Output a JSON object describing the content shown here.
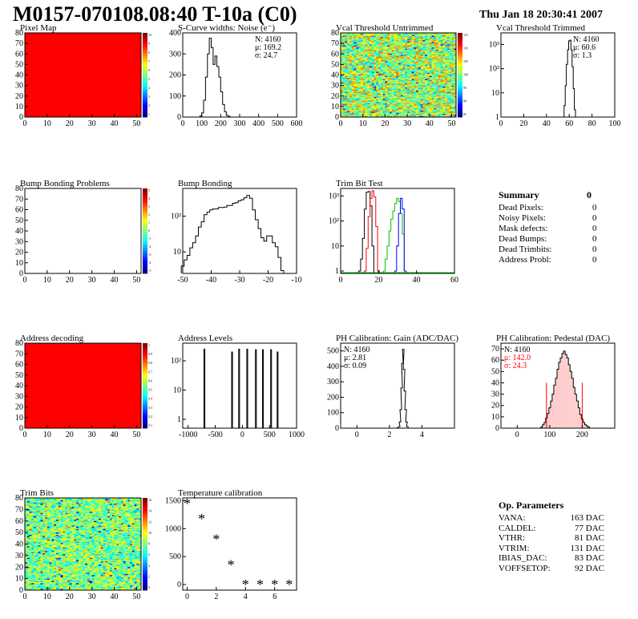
{
  "header": {
    "title": "M0157-070108.08:40 T-10a (C0)",
    "date": "Thu Jan 18 20:30:41 2007"
  },
  "colors": {
    "hist_line": "#000000",
    "red": "#ff0000",
    "green": "#00c000",
    "blue": "#0000ff",
    "frame": "#000000"
  },
  "summary": {
    "title": "Summary",
    "total": "0",
    "rows": [
      {
        "label": "Dead Pixels:",
        "value": "0"
      },
      {
        "label": "Noisy Pixels:",
        "value": "0"
      },
      {
        "label": "Mask defects:",
        "value": "0"
      },
      {
        "label": "Dead Bumps:",
        "value": "0"
      },
      {
        "label": "Dead Trimbits:",
        "value": "0"
      },
      {
        "label": "Address Probl:",
        "value": "0"
      }
    ]
  },
  "op_params": {
    "title": "Op. Parameters",
    "rows": [
      {
        "label": "VANA:",
        "value": "163 DAC"
      },
      {
        "label": "CALDEL:",
        "value": "77 DAC"
      },
      {
        "label": "VTHR:",
        "value": "81 DAC"
      },
      {
        "label": "VTRIM:",
        "value": "131 DAC"
      },
      {
        "label": "IBIAS_DAC:",
        "value": "83 DAC"
      },
      {
        "label": "VOFFSETOP:",
        "value": "92 DAC"
      }
    ]
  },
  "chart_data": [
    {
      "id": "pixel_map",
      "type": "heatmap",
      "title": "Pixel Map",
      "xlim": [
        0,
        52
      ],
      "ylim": [
        0,
        80
      ],
      "xticks": [
        "0",
        "10",
        "20",
        "30",
        "40",
        "50"
      ],
      "yticks": [
        "0",
        "10",
        "20",
        "30",
        "40",
        "50",
        "60",
        "70",
        "80"
      ],
      "fill": "uniform-red",
      "colorbar": [
        "10",
        "9",
        "8",
        "7",
        "6",
        "5",
        "4",
        "3",
        "2",
        "1"
      ]
    },
    {
      "id": "scurve_noise",
      "type": "line",
      "title": "S-Curve widths: Noise (e⁻)",
      "xlim": [
        0,
        600
      ],
      "ylim": [
        0,
        400
      ],
      "xticks": [
        "0",
        "100",
        "200",
        "300",
        "400",
        "500",
        "600"
      ],
      "yticks": [
        "0",
        "100",
        "200",
        "300",
        "400"
      ],
      "stats": [
        "N: 4160",
        "μ: 169.2",
        "σ: 24.7"
      ],
      "x": [
        95,
        105,
        115,
        125,
        135,
        145,
        155,
        165,
        175,
        185,
        195,
        205,
        215,
        225,
        235,
        245,
        255
      ],
      "y": [
        5,
        20,
        80,
        190,
        300,
        375,
        330,
        250,
        290,
        240,
        190,
        120,
        60,
        25,
        8,
        3,
        0
      ]
    },
    {
      "id": "vcal_untrimmed",
      "type": "heatmap",
      "title": "Vcal Threshold Untrimmed",
      "xlim": [
        0,
        52
      ],
      "ylim": [
        0,
        80
      ],
      "xticks": [
        "0",
        "10",
        "20",
        "30",
        "40",
        "50"
      ],
      "yticks": [
        "0",
        "10",
        "20",
        "30",
        "40",
        "50",
        "60",
        "70",
        "80"
      ],
      "fill": "noise-green",
      "colorbar": [
        "115",
        "110",
        "105",
        "100",
        "95",
        "90",
        "85"
      ]
    },
    {
      "id": "vcal_trimmed",
      "type": "line",
      "title": "Vcal Threshold Trimmed",
      "yscale": "log",
      "xlim": [
        0,
        100
      ],
      "ylim": [
        1,
        3000
      ],
      "xticks": [
        "0",
        "20",
        "40",
        "60",
        "80",
        "100"
      ],
      "yticks": [
        "1",
        "10",
        "10²",
        "10³"
      ],
      "stats": [
        "N: 4160",
        "μ: 60.6",
        "σ:  1.3"
      ],
      "x": [
        55,
        56,
        57,
        58,
        59,
        60,
        61,
        62,
        63,
        64,
        65,
        66
      ],
      "y": [
        1,
        3,
        20,
        150,
        600,
        1400,
        1500,
        600,
        120,
        15,
        2,
        1
      ]
    },
    {
      "id": "bump_problems",
      "type": "heatmap",
      "title": "Bump Bonding Problems",
      "xlim": [
        0,
        52
      ],
      "ylim": [
        0,
        80
      ],
      "xticks": [
        "0",
        "10",
        "20",
        "30",
        "40",
        "50"
      ],
      "yticks": [
        "0",
        "10",
        "20",
        "30",
        "40",
        "50",
        "60",
        "70",
        "80"
      ],
      "fill": "empty",
      "colorbar": [
        "5",
        "4",
        "3",
        "2",
        "1",
        "0",
        "-1",
        "-2",
        "-3",
        "-4",
        "-5"
      ]
    },
    {
      "id": "bump_bonding",
      "type": "line",
      "title": "Bump Bonding",
      "yscale": "log",
      "xlim": [
        -50,
        -10
      ],
      "ylim": [
        2.5,
        600
      ],
      "xticks": [
        "-50",
        "-40",
        "-30",
        "-20",
        "-10"
      ],
      "yticks": [
        "10",
        "10²"
      ],
      "x": [
        -50,
        -49,
        -48,
        -47,
        -46,
        -45,
        -44,
        -43,
        -42,
        -41,
        -40,
        -39,
        -38,
        -37,
        -36,
        -35,
        -34,
        -33,
        -32,
        -31,
        -30,
        -29,
        -28,
        -27,
        -26,
        -25,
        -24,
        -23,
        -22,
        -21,
        -20,
        -19,
        -18,
        -17,
        -16,
        -15,
        -14
      ],
      "y": [
        4,
        6,
        8,
        13,
        18,
        28,
        50,
        70,
        110,
        130,
        150,
        160,
        160,
        175,
        175,
        180,
        200,
        200,
        230,
        240,
        270,
        290,
        330,
        380,
        320,
        150,
        80,
        45,
        25,
        20,
        28,
        28,
        18,
        14,
        7,
        3,
        0
      ]
    },
    {
      "id": "trim_bit_test",
      "type": "line",
      "title": "Trim Bit Test",
      "yscale": "log",
      "xlim": [
        0,
        60
      ],
      "ylim": [
        0.8,
        2000
      ],
      "xticks": [
        "0",
        "20",
        "40",
        "60"
      ],
      "yticks": [
        "1",
        "10",
        "10²",
        "10³"
      ],
      "series": [
        {
          "color": "black",
          "x": [
            10,
            11,
            12,
            13,
            14,
            15,
            16,
            17
          ],
          "y": [
            1,
            3,
            20,
            300,
            1400,
            1500,
            400,
            10
          ]
        },
        {
          "color": "red",
          "x": [
            13,
            14,
            15,
            16,
            17,
            18,
            19,
            20
          ],
          "y": [
            1,
            8,
            150,
            800,
            1600,
            900,
            60,
            1
          ]
        },
        {
          "color": "green",
          "x": [
            23,
            24,
            25,
            26,
            27,
            28,
            29,
            30,
            31,
            32,
            33,
            34
          ],
          "y": [
            1,
            3,
            10,
            40,
            120,
            250,
            500,
            800,
            600,
            200,
            30,
            1
          ]
        },
        {
          "color": "blue",
          "x": [
            29,
            30,
            31,
            32,
            33,
            34
          ],
          "y": [
            1,
            10,
            200,
            800,
            300,
            1
          ]
        }
      ]
    },
    {
      "id": "address_decoding",
      "type": "heatmap",
      "title": "Address decoding",
      "xlim": [
        0,
        52
      ],
      "ylim": [
        0,
        80
      ],
      "xticks": [
        "0",
        "10",
        "20",
        "30",
        "40",
        "50"
      ],
      "yticks": [
        "0",
        "10",
        "20",
        "30",
        "40",
        "50",
        "60",
        "70",
        "80"
      ],
      "fill": "uniform-red",
      "colorbar": [
        "1",
        "0.9",
        "0.8",
        "0.7",
        "0.6",
        "0.5",
        "0.4",
        "0.3",
        "0.2",
        "0.1"
      ]
    },
    {
      "id": "address_levels",
      "type": "line",
      "title": "Address Levels",
      "yscale": "log",
      "xlim": [
        -1100,
        1000
      ],
      "ylim": [
        0.5,
        400
      ],
      "xticks": [
        "-1000",
        "-500",
        "0",
        "500",
        "1000"
      ],
      "yticks": [
        "1",
        "10",
        "10²"
      ],
      "peaks_x": [
        -700,
        -190,
        -60,
        90,
        250,
        380,
        530,
        650
      ],
      "peaks_y": [
        250,
        200,
        250,
        250,
        240,
        240,
        240,
        200
      ]
    },
    {
      "id": "ph_gain",
      "type": "line",
      "title": "PH Calibration: Gain (ADC/DAC)",
      "xlim": [
        -1,
        6
      ],
      "ylim": [
        0,
        550
      ],
      "xticks": [
        "0",
        "2",
        "4"
      ],
      "yticks": [
        "0",
        "100",
        "200",
        "300",
        "400",
        "500"
      ],
      "stats": [
        "N: 4160",
        "μ: 2.81",
        "σ: 0.09"
      ],
      "x": [
        2.5,
        2.6,
        2.65,
        2.7,
        2.75,
        2.8,
        2.85,
        2.9,
        2.95,
        3.0,
        3.05,
        3.1,
        3.2
      ],
      "y": [
        2,
        10,
        40,
        120,
        260,
        420,
        510,
        380,
        240,
        120,
        40,
        10,
        0
      ]
    },
    {
      "id": "ph_pedestal",
      "type": "bar",
      "title": "PH Calibration: Pedestal (DAC)",
      "xlim": [
        -50,
        300
      ],
      "ylim": [
        0,
        75
      ],
      "xticks": [
        "0",
        "100",
        "200"
      ],
      "yticks": [
        "0",
        "10",
        "20",
        "30",
        "40",
        "50",
        "60",
        "70"
      ],
      "stats": [
        "N: 4160",
        "μ: 142.0",
        "σ: 24.3"
      ],
      "x": [
        75,
        80,
        85,
        90,
        95,
        100,
        105,
        110,
        115,
        120,
        125,
        130,
        135,
        140,
        145,
        150,
        155,
        160,
        165,
        170,
        175,
        180,
        185,
        190,
        195,
        200,
        205,
        210,
        215,
        220
      ],
      "y": [
        1,
        3,
        5,
        9,
        13,
        18,
        24,
        30,
        38,
        44,
        52,
        58,
        62,
        66,
        68,
        65,
        62,
        56,
        50,
        44,
        36,
        30,
        24,
        18,
        12,
        8,
        5,
        3,
        2,
        1
      ]
    },
    {
      "id": "trim_bits",
      "type": "heatmap",
      "title": "Trim Bits",
      "xlim": [
        0,
        52
      ],
      "ylim": [
        0,
        80
      ],
      "xticks": [
        "0",
        "10",
        "20",
        "30",
        "40",
        "50"
      ],
      "yticks": [
        "0",
        "10",
        "20",
        "30",
        "40",
        "50",
        "60",
        "70",
        "80"
      ],
      "fill": "noise-trim",
      "colorbar": [
        "16",
        "14",
        "12",
        "10",
        "8",
        "6",
        "4",
        "2",
        "0"
      ]
    },
    {
      "id": "temperature_calibration",
      "type": "scatter",
      "title": "Temperature calibration",
      "xlim": [
        -0.3,
        7.5
      ],
      "ylim": [
        -100,
        1550
      ],
      "xticks": [
        "0",
        "2",
        "4",
        "6"
      ],
      "yticks": [
        "0",
        "500",
        "1000",
        "1500"
      ],
      "x": [
        0,
        1,
        2,
        3,
        4,
        5,
        6,
        7
      ],
      "y": [
        1450,
        1180,
        810,
        350,
        0,
        0,
        0,
        0
      ]
    }
  ]
}
